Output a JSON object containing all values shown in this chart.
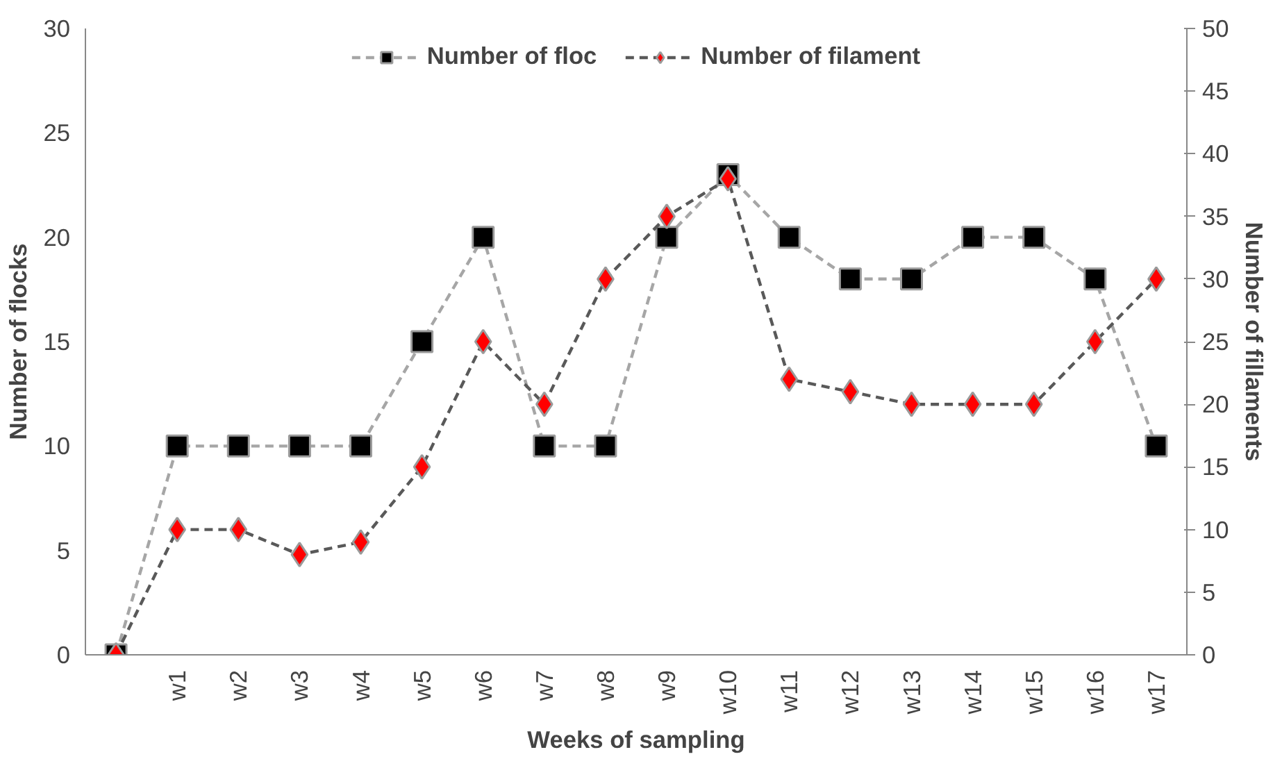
{
  "chart_data": {
    "type": "line",
    "xlabel": "Weeks of sampling",
    "ylabel": "Number of flocks",
    "y2label": "Number of fillaments",
    "categories": [
      null,
      "w1",
      "w2",
      "w3",
      "w4",
      "w5",
      "w6",
      "w7",
      "w8",
      "w9",
      "w10",
      "w11",
      "w12",
      "w13",
      "w14",
      "w15",
      "w16",
      "w17"
    ],
    "series": [
      {
        "name": "Number of floc",
        "color": "#000000",
        "marker": "square",
        "values": [
          0,
          10,
          10,
          10,
          10,
          15,
          20,
          10,
          10,
          20,
          23,
          20,
          18,
          18,
          20,
          20,
          18,
          10
        ]
      },
      {
        "name": "Number of filament",
        "color": "#ff0000",
        "marker": "diamond",
        "axis": "y2",
        "values": [
          0,
          10,
          10,
          8,
          9,
          15,
          25,
          20,
          30,
          35,
          38,
          22,
          21,
          20,
          20,
          20,
          25,
          30
        ]
      }
    ],
    "ylim": [
      0,
      30
    ],
    "yticks": [
      0,
      5,
      10,
      15,
      20,
      25,
      30
    ],
    "y2lim": [
      0,
      50
    ],
    "y2ticks": [
      0,
      5,
      10,
      15,
      20,
      25,
      30,
      35,
      40,
      45,
      50
    ],
    "line_style": "dashed",
    "grid": false,
    "legend": "top"
  }
}
